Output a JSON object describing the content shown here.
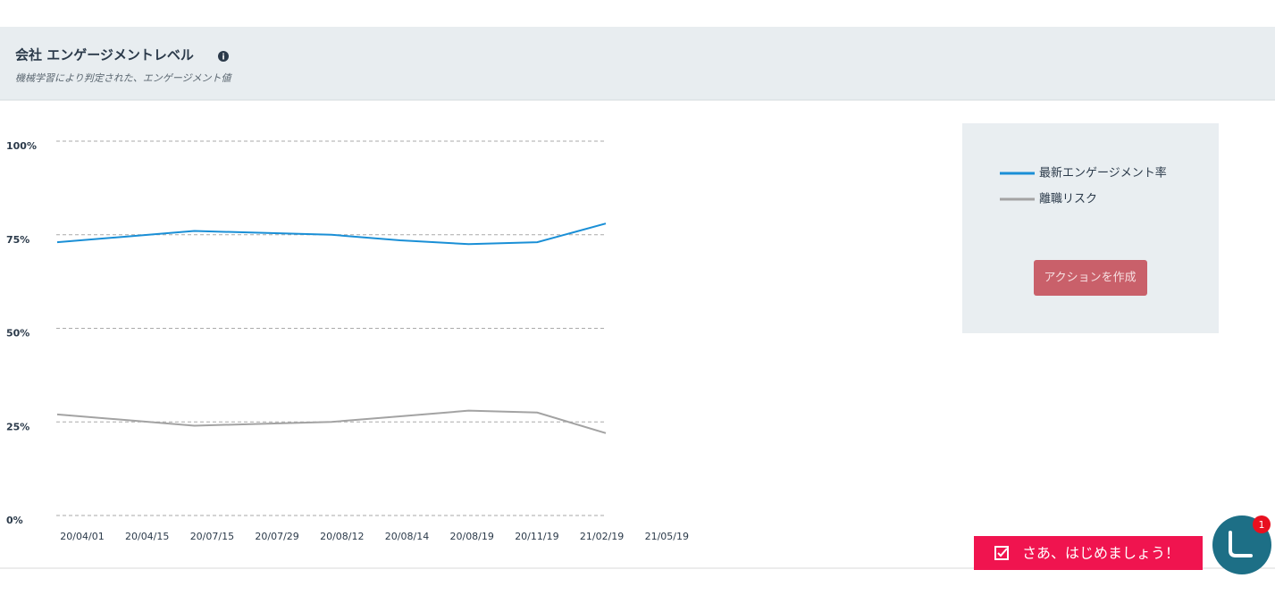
{
  "header": {
    "title": "会社 エンゲージメントレベル",
    "subtitle": "機械学習により判定された、エンゲージメント値"
  },
  "chart_data": {
    "type": "line",
    "categories": [
      "20/04/01",
      "20/04/15",
      "20/07/15",
      "20/07/29",
      "20/08/12",
      "20/08/14",
      "20/08/19",
      "20/11/19",
      "21/02/19",
      "21/05/19"
    ],
    "series": [
      {
        "name": "最新エンゲージメント率",
        "color": "#1a8fd6",
        "values": [
          73,
          74.5,
          76,
          75.5,
          75,
          73.5,
          72.5,
          73,
          78,
          null
        ]
      },
      {
        "name": "離職リスク",
        "color": "#a3a3a3",
        "values": [
          27,
          25.5,
          24,
          24.5,
          25,
          26.5,
          28,
          27.5,
          22,
          null
        ]
      }
    ],
    "ylim": [
      0,
      100
    ],
    "yticks": [
      {
        "value": 0,
        "label": "0%"
      },
      {
        "value": 25,
        "label": "25%"
      },
      {
        "value": 50,
        "label": "50%"
      },
      {
        "value": 75,
        "label": "75%"
      },
      {
        "value": 100,
        "label": "100%"
      }
    ],
    "grid": true
  },
  "action_button": "アクションを作成",
  "cta_button": "さあ、はじめましょう！",
  "chat_badge": "1"
}
